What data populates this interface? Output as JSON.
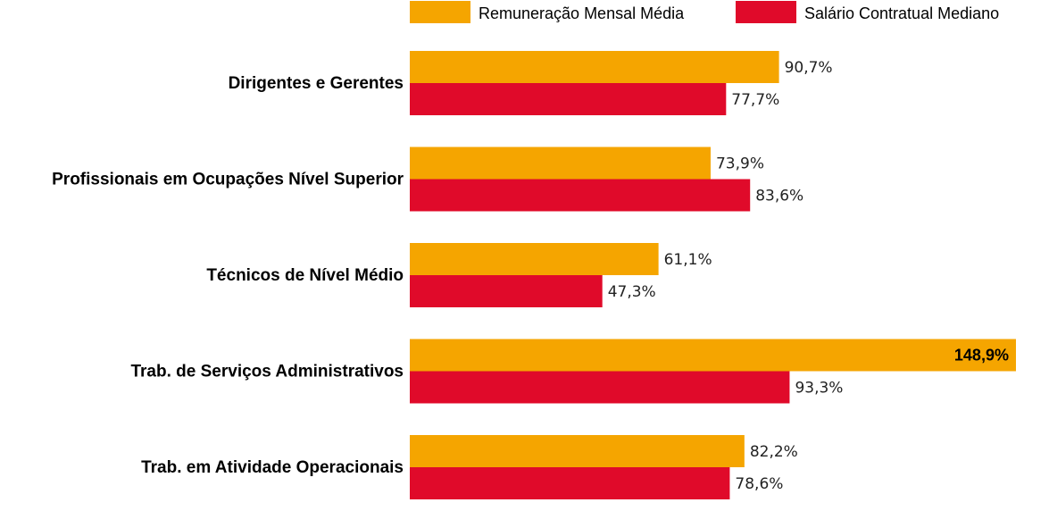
{
  "chart_data": {
    "type": "bar",
    "orientation": "horizontal",
    "categories": [
      "Dirigentes e Gerentes",
      "Profissionais em Ocupações Nível Superior",
      "Técnicos de Nível Médio",
      "Trab. de Serviços Administrativos",
      "Trab. em Atividade Operacionais"
    ],
    "series": [
      {
        "name": "Remuneração Mensal Média",
        "color": "#f5a500",
        "values": [
          90.7,
          73.9,
          61.1,
          148.9,
          82.2
        ],
        "labels": [
          "90,7%",
          "73,9%",
          "61,1%",
          "148,9%",
          "82,2%"
        ]
      },
      {
        "name": "Salário Contratual Mediano",
        "color": "#e00a2a",
        "values": [
          77.7,
          83.6,
          47.3,
          93.3,
          78.6
        ],
        "labels": [
          "77,7%",
          "83,6%",
          "47,3%",
          "93,3%",
          "78,6%"
        ]
      }
    ],
    "xlim": [
      0,
      150
    ],
    "grid": false,
    "legend_position": "top-right"
  }
}
